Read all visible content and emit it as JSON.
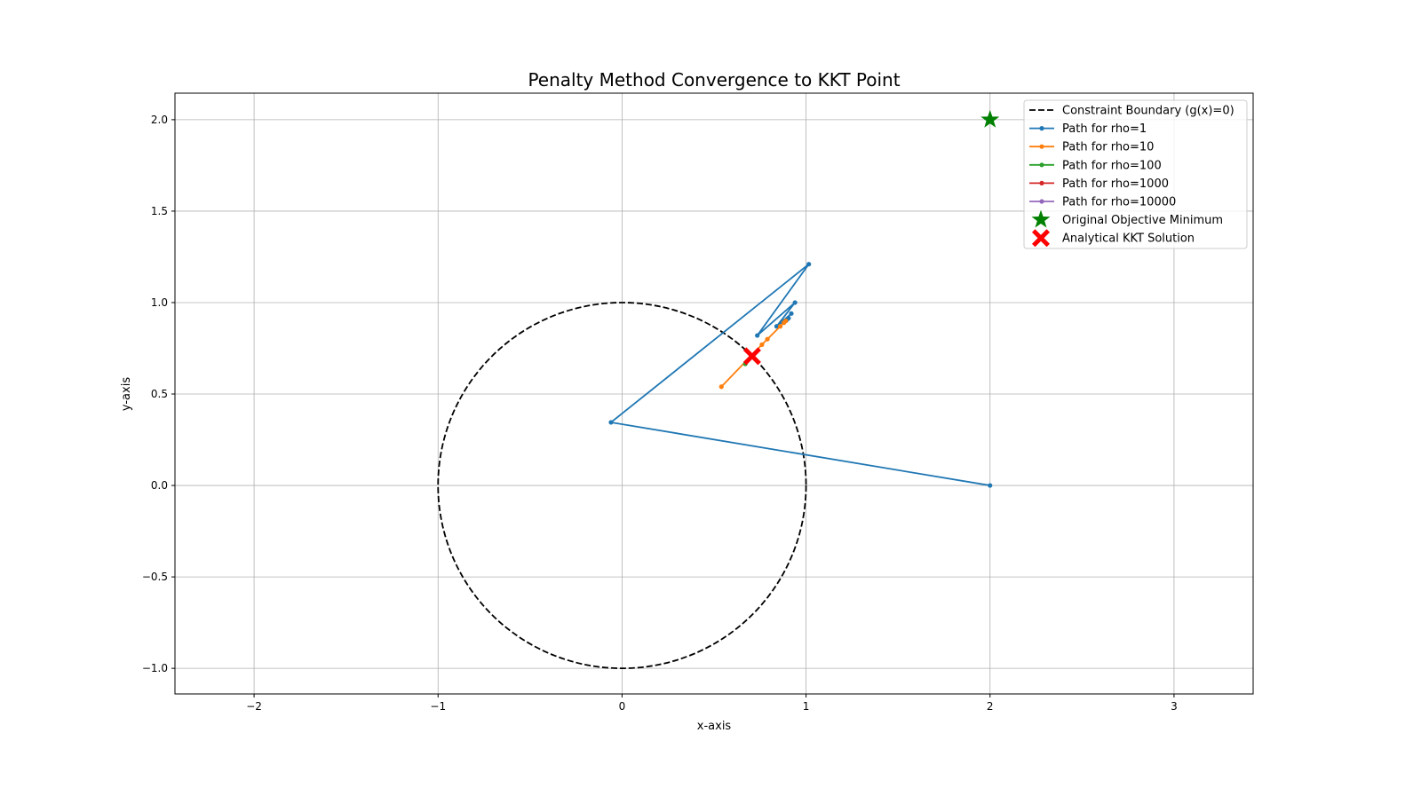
{
  "chart_data": {
    "type": "line",
    "title": "Penalty Method Convergence to KKT Point",
    "xlabel": "x-axis",
    "ylabel": "y-axis",
    "xlim": [
      -2.43,
      3.43
    ],
    "ylim": [
      -1.14,
      2.145
    ],
    "grid": true,
    "legend_position": "top-right",
    "xticks": [
      -2,
      -1,
      0,
      1,
      2,
      3
    ],
    "xtick_labels": [
      "−2",
      "−1",
      "0",
      "1",
      "2",
      "3"
    ],
    "yticks": [
      -1.0,
      -0.5,
      0.0,
      0.5,
      1.0,
      1.5,
      2.0
    ],
    "ytick_labels": [
      "−1.0",
      "−0.5",
      "0.0",
      "0.5",
      "1.0",
      "1.5",
      "2.0"
    ],
    "constraint": {
      "name": "Constraint Boundary (g(x)=0)",
      "center": [
        0,
        0
      ],
      "radius": 1,
      "color": "#000000"
    },
    "series": [
      {
        "name": "Path for rho=1",
        "color": "#1f77b4",
        "x": [
          2.0,
          -0.06,
          1.015,
          0.735,
          0.94,
          0.84,
          0.92,
          0.87,
          0.905,
          0.885,
          0.895,
          0.89
        ],
        "y": [
          0.0,
          0.345,
          1.21,
          0.82,
          1.0,
          0.87,
          0.94,
          0.895,
          0.915,
          0.9,
          0.905,
          0.9
        ]
      },
      {
        "name": "Path for rho=10",
        "color": "#ff7f0e",
        "x": [
          0.54,
          0.76,
          0.79,
          0.86,
          0.88,
          0.89
        ],
        "y": [
          0.54,
          0.77,
          0.8,
          0.87,
          0.89,
          0.9
        ]
      },
      {
        "name": "Path for rho=100",
        "color": "#2ca02c",
        "x": [
          0.67,
          0.7,
          0.705
        ],
        "y": [
          0.665,
          0.7,
          0.706
        ]
      },
      {
        "name": "Path for rho=1000",
        "color": "#d62728",
        "x": [
          0.707,
          0.707
        ],
        "y": [
          0.707,
          0.707
        ]
      },
      {
        "name": "Path for rho=10000",
        "color": "#9467bd",
        "x": [
          0.707,
          0.707
        ],
        "y": [
          0.707,
          0.707
        ]
      }
    ],
    "markers": [
      {
        "name": "Original Objective Minimum",
        "x": 2,
        "y": 2,
        "shape": "star",
        "color": "#008000"
      },
      {
        "name": "Analytical KKT Solution",
        "x": 0.7071,
        "y": 0.7071,
        "shape": "X",
        "color": "#ff0000"
      }
    ]
  }
}
